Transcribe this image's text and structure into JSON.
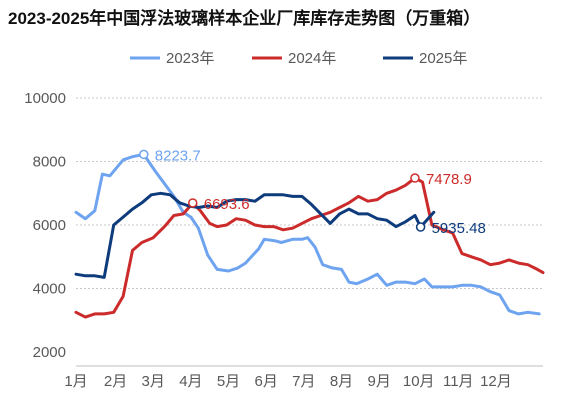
{
  "title": "2023-2025年中国浮法玻璃样本企业厂库库存走势图（万重箱）",
  "chart_data": {
    "type": "line",
    "title": "2023-2025年中国浮法玻璃样本企业厂库库存走势图（万重箱）",
    "ylim": [
      2000,
      10000
    ],
    "yticks": [
      2000,
      4000,
      6000,
      8000,
      10000
    ],
    "xlabels": [
      "1月",
      "2月",
      "3月",
      "4月",
      "5月",
      "6月",
      "7月",
      "8月",
      "9月",
      "10月",
      "11月",
      "12月"
    ],
    "grid": "horizontal dotted",
    "legend_position": "top",
    "series": [
      {
        "name": "2023年",
        "color": "#6ea3f0",
        "points": [
          [
            1.0,
            6400
          ],
          [
            1.25,
            6200
          ],
          [
            1.5,
            6450
          ],
          [
            1.7,
            7600
          ],
          [
            1.9,
            7550
          ],
          [
            2.25,
            8050
          ],
          [
            2.5,
            8150
          ],
          [
            2.8,
            8223.7
          ],
          [
            3.1,
            7700
          ],
          [
            3.35,
            7300
          ],
          [
            3.6,
            6900
          ],
          [
            3.85,
            6400
          ],
          [
            4.05,
            6250
          ],
          [
            4.25,
            5900
          ],
          [
            4.5,
            5050
          ],
          [
            4.75,
            4600
          ],
          [
            5.05,
            4550
          ],
          [
            5.3,
            4650
          ],
          [
            5.5,
            4800
          ],
          [
            5.85,
            5250
          ],
          [
            6.0,
            5550
          ],
          [
            6.3,
            5500
          ],
          [
            6.45,
            5450
          ],
          [
            6.75,
            5550
          ],
          [
            7.0,
            5550
          ],
          [
            7.15,
            5600
          ],
          [
            7.35,
            5300
          ],
          [
            7.55,
            4750
          ],
          [
            7.8,
            4650
          ],
          [
            8.05,
            4600
          ],
          [
            8.25,
            4200
          ],
          [
            8.45,
            4150
          ],
          [
            8.75,
            4300
          ],
          [
            9.0,
            4450
          ],
          [
            9.25,
            4100
          ],
          [
            9.5,
            4200
          ],
          [
            9.75,
            4200
          ],
          [
            10.0,
            4150
          ],
          [
            10.25,
            4300
          ],
          [
            10.45,
            4050
          ],
          [
            10.75,
            4050
          ],
          [
            11.0,
            4050
          ],
          [
            11.25,
            4100
          ],
          [
            11.5,
            4100
          ],
          [
            11.75,
            4050
          ],
          [
            12.0,
            3900
          ],
          [
            12.25,
            3800
          ],
          [
            12.5,
            3300
          ],
          [
            12.75,
            3200
          ],
          [
            13.0,
            3250
          ],
          [
            13.3,
            3200
          ]
        ]
      },
      {
        "name": "2024年",
        "color": "#cc2b2b",
        "points": [
          [
            1.0,
            3250
          ],
          [
            1.25,
            3100
          ],
          [
            1.5,
            3200
          ],
          [
            1.75,
            3200
          ],
          [
            2.0,
            3250
          ],
          [
            2.25,
            3750
          ],
          [
            2.5,
            5200
          ],
          [
            2.75,
            5450
          ],
          [
            3.05,
            5600
          ],
          [
            3.35,
            5950
          ],
          [
            3.6,
            6300
          ],
          [
            3.85,
            6350
          ],
          [
            4.1,
            6693.6
          ],
          [
            4.3,
            6450
          ],
          [
            4.55,
            6050
          ],
          [
            4.75,
            5950
          ],
          [
            5.0,
            6000
          ],
          [
            5.25,
            6200
          ],
          [
            5.5,
            6150
          ],
          [
            5.75,
            6000
          ],
          [
            6.0,
            5950
          ],
          [
            6.25,
            5950
          ],
          [
            6.5,
            5850
          ],
          [
            6.75,
            5900
          ],
          [
            7.0,
            6050
          ],
          [
            7.25,
            6200
          ],
          [
            7.5,
            6300
          ],
          [
            7.75,
            6400
          ],
          [
            8.0,
            6550
          ],
          [
            8.25,
            6700
          ],
          [
            8.5,
            6900
          ],
          [
            8.75,
            6750
          ],
          [
            9.0,
            6800
          ],
          [
            9.25,
            7000
          ],
          [
            9.5,
            7100
          ],
          [
            9.75,
            7250
          ],
          [
            10.0,
            7478.9
          ],
          [
            10.2,
            7350
          ],
          [
            10.45,
            6000
          ],
          [
            10.75,
            5850
          ],
          [
            11.0,
            5750
          ],
          [
            11.25,
            5100
          ],
          [
            11.5,
            5000
          ],
          [
            11.75,
            4900
          ],
          [
            12.0,
            4750
          ],
          [
            12.25,
            4800
          ],
          [
            12.5,
            4900
          ],
          [
            12.75,
            4800
          ],
          [
            13.0,
            4750
          ],
          [
            13.25,
            4600
          ],
          [
            13.4,
            4500
          ]
        ]
      },
      {
        "name": "2025年",
        "color": "#0d3b7c",
        "points": [
          [
            1.0,
            4450
          ],
          [
            1.25,
            4400
          ],
          [
            1.5,
            4400
          ],
          [
            1.75,
            4350
          ],
          [
            2.0,
            6000
          ],
          [
            2.25,
            6250
          ],
          [
            2.5,
            6500
          ],
          [
            2.75,
            6700
          ],
          [
            3.0,
            6950
          ],
          [
            3.25,
            7000
          ],
          [
            3.5,
            6950
          ],
          [
            3.75,
            6700
          ],
          [
            4.0,
            6600
          ],
          [
            4.25,
            6550
          ],
          [
            4.5,
            6600
          ],
          [
            4.75,
            6550
          ],
          [
            5.0,
            6750
          ],
          [
            5.25,
            6800
          ],
          [
            5.5,
            6800
          ],
          [
            5.75,
            6750
          ],
          [
            6.0,
            6950
          ],
          [
            6.25,
            6950
          ],
          [
            6.5,
            6950
          ],
          [
            6.75,
            6900
          ],
          [
            7.0,
            6900
          ],
          [
            7.25,
            6650
          ],
          [
            7.5,
            6350
          ],
          [
            7.75,
            6050
          ],
          [
            8.0,
            6350
          ],
          [
            8.25,
            6500
          ],
          [
            8.5,
            6350
          ],
          [
            8.75,
            6350
          ],
          [
            9.0,
            6200
          ],
          [
            9.25,
            6150
          ],
          [
            9.5,
            5950
          ],
          [
            9.75,
            6100
          ],
          [
            10.0,
            6300
          ],
          [
            10.15,
            5935.48
          ],
          [
            10.5,
            6400
          ]
        ]
      }
    ],
    "annotations": [
      {
        "series": "2023年",
        "x": 2.8,
        "y": 8223.7,
        "label": "8223.7"
      },
      {
        "series": "2024年",
        "x": 4.1,
        "y": 6693.6,
        "label": "6693.6"
      },
      {
        "series": "2024年",
        "x": 10.0,
        "y": 7478.9,
        "label": "7478.9"
      },
      {
        "series": "2025年",
        "x": 10.15,
        "y": 5935.48,
        "label": "5935.48"
      }
    ]
  }
}
